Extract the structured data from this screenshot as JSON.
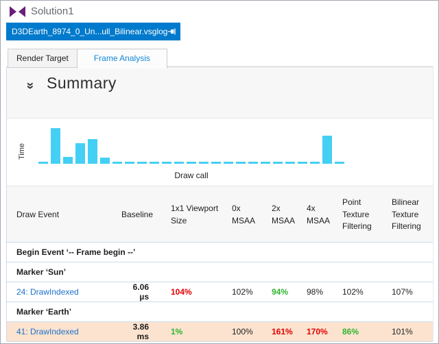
{
  "colors": {
    "accent_blue": "#007acc",
    "link_blue": "#1b70c8",
    "active_tab_text": "#1287d9",
    "good_green": "#2fb52f",
    "bad_red": "#e10000",
    "neutral_text": "#1e1e1e",
    "highlight_row_bg": "#fce3cf",
    "chart_bar_cyan": "#44cff4",
    "logo_purple": "#68217a"
  },
  "titlebar": {
    "title": "Solution1",
    "logo": "visual-studio-logo"
  },
  "doc_tab": {
    "label": "D3DEarth_8974_0_Un...ull_Bilinear.vsglog",
    "pin_icon": "pin-icon",
    "close_glyph": "×"
  },
  "tabs": [
    {
      "label": "Render Target",
      "active": false
    },
    {
      "label": "Frame Analysis",
      "active": true
    }
  ],
  "summary": {
    "collapse_icon": "double-chevron-down-icon",
    "collapse_glyph": "»",
    "title": "Summary"
  },
  "chart_data": {
    "type": "bar",
    "title": "",
    "xlabel": "Draw call",
    "ylabel": "Time",
    "legend": false,
    "grid": false,
    "axis_numeric_labels": false,
    "description": "Relative GPU time per draw call; near-zero calls render as flat dashes. Values are percent of tallest bar.",
    "values": [
      3,
      100,
      20,
      57,
      69,
      17,
      3,
      3,
      3,
      3,
      3,
      3,
      3,
      3,
      3,
      3,
      3,
      3,
      3,
      3,
      3,
      3,
      3,
      79,
      3
    ]
  },
  "table": {
    "columns": [
      "Draw Event",
      "Baseline",
      "1x1 Viewport Size",
      "0x MSAA",
      "2x MSAA",
      "4x MSAA",
      "Point Texture Filtering",
      "Bilinear Texture Filtering"
    ],
    "rows": [
      {
        "type": "group",
        "label": "Begin Event ‘-- Frame begin --’"
      },
      {
        "type": "group",
        "label": "Marker ‘Sun’"
      },
      {
        "type": "data",
        "highlight": false,
        "event": "24: DrawIndexed",
        "baseline": "6.06 µs",
        "values": [
          {
            "text": "104%",
            "status": "bad"
          },
          {
            "text": "102%",
            "status": "neutral"
          },
          {
            "text": "94%",
            "status": "good"
          },
          {
            "text": "98%",
            "status": "neutral"
          },
          {
            "text": "102%",
            "status": "neutral"
          },
          {
            "text": "107%",
            "status": "neutral"
          }
        ]
      },
      {
        "type": "group",
        "label": "Marker ‘Earth’"
      },
      {
        "type": "data",
        "highlight": true,
        "event": "41: DrawIndexed",
        "baseline": "3.86 ms",
        "values": [
          {
            "text": "1%",
            "status": "good"
          },
          {
            "text": "100%",
            "status": "neutral"
          },
          {
            "text": "161%",
            "status": "bad"
          },
          {
            "text": "170%",
            "status": "bad"
          },
          {
            "text": "86%",
            "status": "good"
          },
          {
            "text": "101%",
            "status": "neutral"
          }
        ]
      }
    ]
  }
}
